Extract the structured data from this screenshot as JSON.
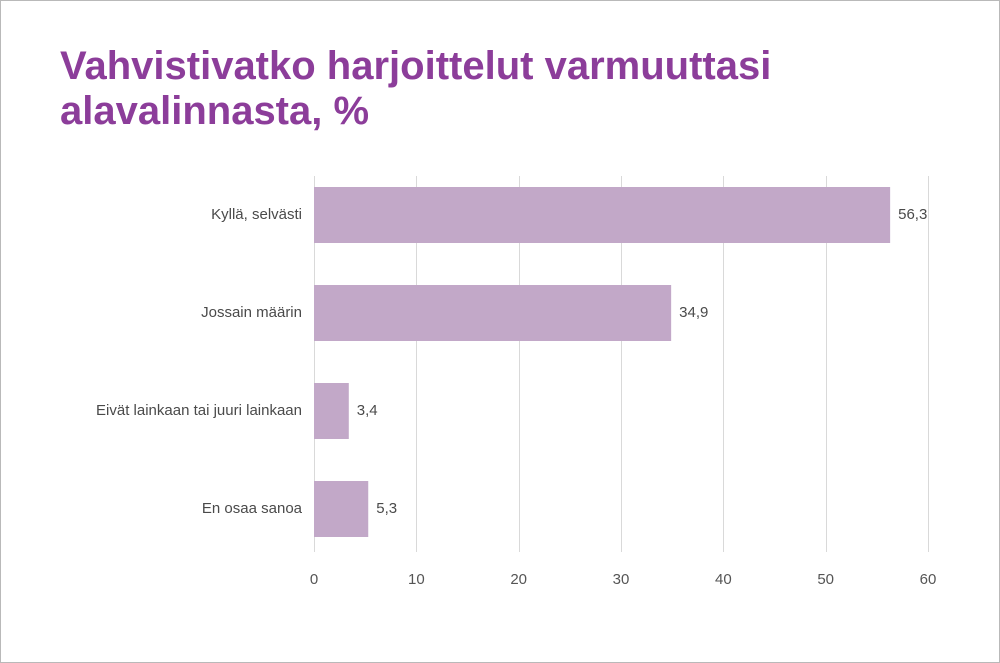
{
  "chart_data": {
    "type": "bar",
    "orientation": "horizontal",
    "title": "Vahvistivatko harjoittelut varmuuttasi alavalinnasta, %",
    "categories": [
      "Kyllä, selvästi",
      "Jossain määrin",
      "Eivät lainkaan tai juuri lainkaan",
      "En osaa sanoa"
    ],
    "values": [
      56.3,
      34.9,
      3.4,
      5.3
    ],
    "value_labels": [
      "56,3",
      "34,9",
      "3,4",
      "5,3"
    ],
    "xlim": [
      0,
      60
    ],
    "xticks": [
      0,
      10,
      20,
      30,
      40,
      50,
      60
    ],
    "xtick_labels": [
      "0",
      "10",
      "20",
      "30",
      "40",
      "50",
      "60"
    ],
    "grid": "vertical",
    "legend": "none",
    "bar_color": "#c2a8c8",
    "title_color": "#8c3d9a",
    "grid_color": "#d9d9d9",
    "text_color": "#4a4a4a"
  }
}
